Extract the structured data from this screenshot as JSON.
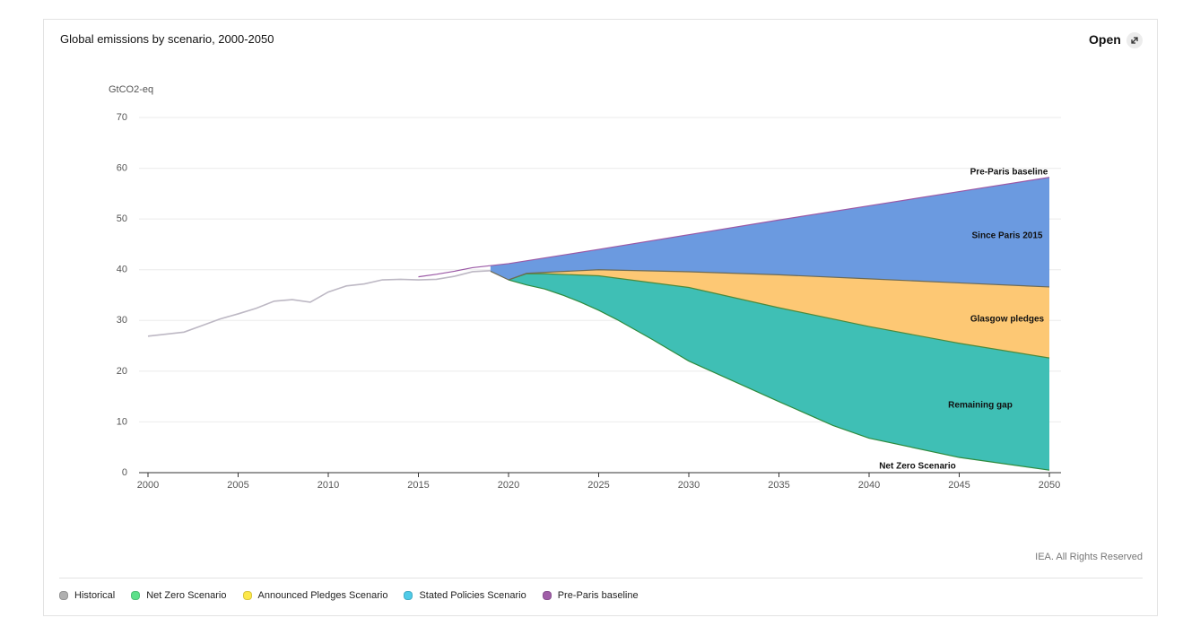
{
  "header": {
    "title": "Global emissions by scenario, 2000-2050",
    "open": "Open"
  },
  "footer": "IEA. All Rights Reserved",
  "chart_data": {
    "type": "area",
    "y_label": "GtCO2-eq",
    "xlim": [
      2000,
      2050
    ],
    "xticks": [
      2000,
      2005,
      2010,
      2015,
      2020,
      2025,
      2030,
      2035,
      2040,
      2045,
      2050
    ],
    "ylim": [
      0,
      70
    ],
    "yticks": [
      0,
      10,
      20,
      30,
      40,
      50,
      60,
      70
    ],
    "grid": true,
    "series": [
      {
        "name": "Historical",
        "color": "#bdb8c4",
        "x": [
          2000,
          2001,
          2002,
          2003,
          2004,
          2005,
          2006,
          2007,
          2008,
          2009,
          2010,
          2011,
          2012,
          2013,
          2014,
          2015,
          2016,
          2017,
          2018,
          2019
        ],
        "values": [
          26.9,
          27.3,
          27.7,
          29.0,
          30.3,
          31.3,
          32.4,
          33.8,
          34.1,
          33.6,
          35.6,
          36.8,
          37.2,
          38.0,
          38.1,
          38.0,
          38.1,
          38.7,
          39.6,
          39.8
        ]
      },
      {
        "name": "Net Zero Scenario",
        "color": "#2e8b3e",
        "end_label": "Net Zero Scenario",
        "x": [
          2020,
          2021,
          2022,
          2023,
          2024,
          2025,
          2026,
          2028,
          2030,
          2033,
          2035,
          2038,
          2040,
          2045,
          2050
        ],
        "values": [
          38.0,
          37.0,
          36.2,
          35.0,
          33.6,
          32.0,
          30.2,
          26.2,
          22.0,
          17.2,
          14.0,
          9.3,
          6.8,
          3.0,
          0.5
        ]
      },
      {
        "name": "Announced Pledges Scenario",
        "color": "#4c8a3c",
        "x": [
          2020,
          2021,
          2022,
          2025,
          2030,
          2035,
          2040,
          2045,
          2050
        ],
        "values": [
          38.0,
          39.2,
          39.2,
          38.8,
          36.5,
          32.5,
          28.8,
          25.5,
          22.6
        ]
      },
      {
        "name": "Stated Policies Scenario",
        "color": "#6c6a55",
        "x": [
          2019,
          2020,
          2021,
          2025,
          2030,
          2035,
          2040,
          2045,
          2050
        ],
        "values": [
          39.7,
          38.0,
          39.3,
          40.0,
          39.6,
          39.0,
          38.2,
          37.4,
          36.6
        ]
      },
      {
        "name": "Pre-Paris baseline",
        "color": "#9b59a6",
        "end_label": "Pre-Paris baseline",
        "x": [
          2015,
          2016,
          2017,
          2018,
          2019,
          2020,
          2025,
          2030,
          2035,
          2040,
          2045,
          2050
        ],
        "values": [
          38.6,
          39.1,
          39.7,
          40.4,
          40.8,
          41.2,
          44.0,
          46.9,
          49.8,
          52.6,
          55.4,
          58.2
        ]
      }
    ],
    "bands": [
      {
        "label": "Remaining gap",
        "color": "#3fbfb5"
      },
      {
        "label": "Glasgow pledges",
        "color": "#fdc874"
      },
      {
        "label": "Since Paris 2015",
        "color": "#6b9ae0"
      }
    ],
    "legend_colors": [
      "#b0b0b0",
      "#5de08a",
      "#fde84a",
      "#4fcbe8",
      "#a05ea8"
    ]
  }
}
